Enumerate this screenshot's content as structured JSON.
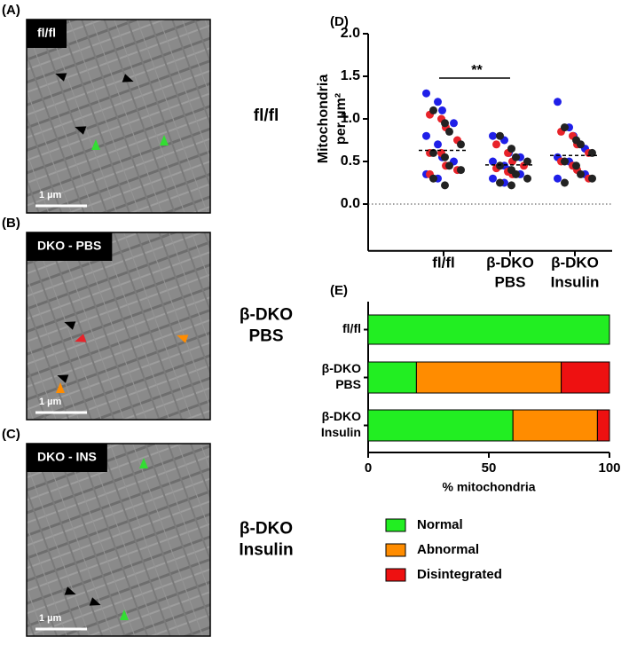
{
  "panels": [
    {
      "label": "(A)",
      "tag": "fl/fl",
      "scale": "1 µm",
      "group": [
        "fl/fl"
      ]
    },
    {
      "label": "(B)",
      "tag": "DKO - PBS",
      "scale": "1 µm",
      "group": [
        "β-DKO",
        "PBS"
      ]
    },
    {
      "label": "(C)",
      "tag": "DKO - INS",
      "scale": "1 µm",
      "group": [
        "β-DKO",
        "Insulin"
      ]
    }
  ],
  "chart_data": [
    {
      "type": "strip",
      "panel": "(D)",
      "ylabel": [
        "Mitochondria",
        "per µm²"
      ],
      "categories": [
        [
          "fl/fl"
        ],
        [
          "β-DKO",
          "PBS"
        ],
        [
          "β-DKO",
          "Insulin"
        ]
      ],
      "series": [
        {
          "color": "#1f1fe8",
          "values": [
            [
              1.3,
              1.2,
              1.1,
              0.95,
              0.8,
              0.7,
              0.55,
              0.5,
              0.35,
              0.3
            ],
            [
              0.8,
              0.75,
              0.6,
              0.55,
              0.5,
              0.45,
              0.4,
              0.35,
              0.3,
              0.25
            ],
            [
              1.2,
              0.9,
              0.8,
              0.65,
              0.55,
              0.5,
              0.45,
              0.35,
              0.3
            ]
          ]
        },
        {
          "color": "#e8232a",
          "values": [
            [
              1.05,
              1.0,
              0.9,
              0.75,
              0.6,
              0.6,
              0.45,
              0.4,
              0.35
            ],
            [
              0.7,
              0.6,
              0.5,
              0.45,
              0.42,
              0.38,
              0.35
            ],
            [
              0.85,
              0.8,
              0.7,
              0.6,
              0.5,
              0.45,
              0.4,
              0.3
            ]
          ]
        },
        {
          "color": "#222222",
          "values": [
            [
              1.1,
              0.95,
              0.85,
              0.7,
              0.6,
              0.55,
              0.45,
              0.4,
              0.3,
              0.22
            ],
            [
              0.8,
              0.65,
              0.55,
              0.5,
              0.45,
              0.4,
              0.35,
              0.3,
              0.25,
              0.22
            ],
            [
              0.9,
              0.75,
              0.7,
              0.6,
              0.5,
              0.45,
              0.35,
              0.3,
              0.25
            ]
          ]
        }
      ],
      "means": [
        0.63,
        0.46,
        0.57
      ],
      "ref_line": 0,
      "annotation": "**",
      "ylim": [
        -0.55,
        2.0
      ],
      "yticks": [
        {
          "value": 0,
          "label": "0.0"
        },
        {
          "value": 0.5,
          "label": "0.5"
        },
        {
          "value": 1,
          "label": "1.0"
        },
        {
          "value": 1.5,
          "label": "1.5"
        },
        {
          "value": 2,
          "label": "2.0"
        }
      ]
    },
    {
      "type": "hbar_stacked",
      "panel": "(E)",
      "categories": [
        [
          "fl/fl"
        ],
        [
          "β-DKO",
          "PBS"
        ],
        [
          "β-DKO",
          "Insulin"
        ]
      ],
      "series": [
        {
          "name": "Normal",
          "color": "#22ee22",
          "values": [
            100,
            20,
            60
          ]
        },
        {
          "name": "Abnormal",
          "color": "#ff8c00",
          "values": [
            0,
            60,
            35
          ]
        },
        {
          "name": "Disintegrated",
          "color": "#ee1111",
          "values": [
            0,
            20,
            5
          ]
        }
      ],
      "xlabel": "% mitochondria",
      "xlim": [
        0,
        100
      ],
      "xticks": [
        0,
        50,
        100
      ]
    }
  ]
}
